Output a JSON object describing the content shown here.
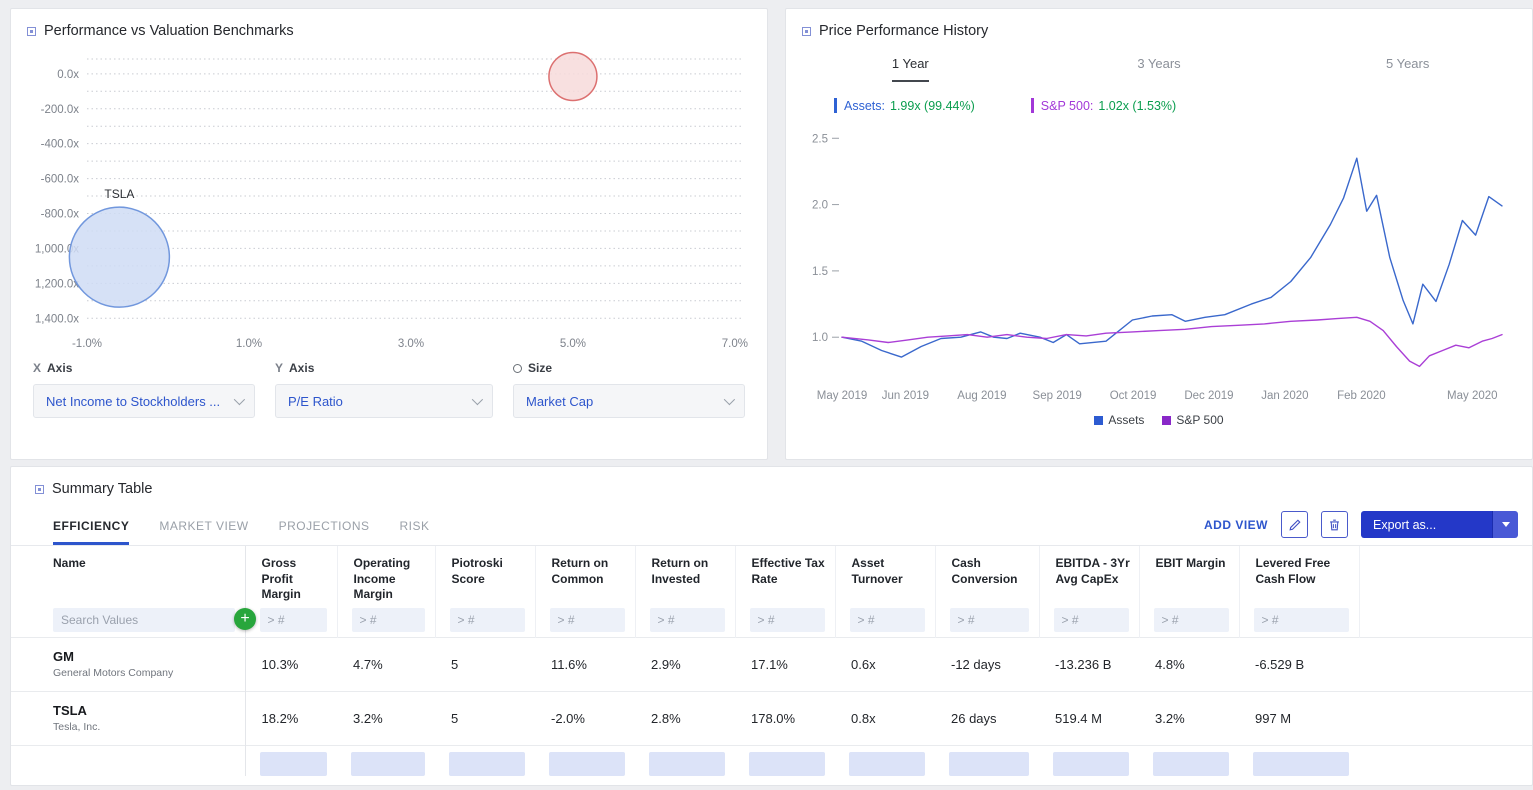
{
  "panels": {
    "scatter": {
      "title": "Performance vs Valuation Benchmarks",
      "controls": [
        {
          "prefix": "X",
          "label": "Axis",
          "value": "Net Income to Stockholders ..."
        },
        {
          "prefix": "Y",
          "label": "Axis",
          "value": "P/E Ratio"
        },
        {
          "prefix": "",
          "label": "Size",
          "value": "Market Cap"
        }
      ]
    },
    "price": {
      "title": "Price Performance History",
      "tabs": [
        "1 Year",
        "3 Years",
        "5 Years"
      ],
      "active_tab": "1 Year",
      "legend": [
        {
          "name": "Assets:",
          "value": "1.99x (99.44%)",
          "color": "#2f62d4"
        },
        {
          "name": "S&P 500:",
          "value": "1.02x (1.53%)",
          "color": "#a238d8"
        }
      ],
      "series_legend": [
        {
          "label": "Assets",
          "color": "#2d5bd1"
        },
        {
          "label": "S&P 500",
          "color": "#8928c8"
        }
      ]
    }
  },
  "summary": {
    "title": "Summary Table",
    "tabs": [
      "EFFICIENCY",
      "MARKET VIEW",
      "PROJECTIONS",
      "RISK"
    ],
    "active_tab": "EFFICIENCY",
    "add_view_label": "ADD VIEW",
    "export_label": "Export as...",
    "search_placeholder": "Search Values",
    "filter_placeholder": "> #",
    "columns": [
      "Name",
      "Gross Profit Margin",
      "Operating Income Margin",
      "Piotroski Score",
      "Return on Common",
      "Return on Invested",
      "Effective Tax Rate",
      "Asset Turnover",
      "Cash Conversion",
      "EBITDA - 3Yr Avg CapEx",
      "EBIT Margin",
      "Levered Free Cash Flow"
    ],
    "rows": [
      {
        "ticker": "GM",
        "company": "General Motors Company",
        "values": [
          "10.3%",
          "4.7%",
          "5",
          "11.6%",
          "2.9%",
          "17.1%",
          "0.6x",
          "-12 days",
          "-13.236 B",
          "4.8%",
          "-6.529 B"
        ]
      },
      {
        "ticker": "TSLA",
        "company": "Tesla, Inc.",
        "values": [
          "18.2%",
          "3.2%",
          "5",
          "-2.0%",
          "2.8%",
          "178.0%",
          "0.8x",
          "26 days",
          "519.4 M",
          "3.2%",
          "997 M"
        ]
      }
    ]
  },
  "chart_data": [
    {
      "id": "valuation-scatter",
      "type": "scatter",
      "title": "Performance vs Valuation Benchmarks",
      "xlabel": "Net Income to Stockholders ...",
      "ylabel": "P/E Ratio",
      "size_label": "Market Cap",
      "xlim": [
        -1.0,
        7.1
      ],
      "ylim": [
        -1450,
        85
      ],
      "grid": "horizontal-dotted",
      "grid_step": 100,
      "xticks": [
        {
          "v": -1.0,
          "label": "-1.0%"
        },
        {
          "v": 1.0,
          "label": "1.0%"
        },
        {
          "v": 3.0,
          "label": "3.0%"
        },
        {
          "v": 5.0,
          "label": "5.0%"
        },
        {
          "v": 7.0,
          "label": "7.0%"
        }
      ],
      "yticks": [
        {
          "v": 0,
          "label": "0.0x"
        },
        {
          "v": -200,
          "label": "-200.0x"
        },
        {
          "v": -400,
          "label": "-400.0x"
        },
        {
          "v": -600,
          "label": "-600.0x"
        },
        {
          "v": -800,
          "label": "-800.0x"
        },
        {
          "v": -1000,
          "label": "1,000.0x"
        },
        {
          "v": -1200,
          "label": "1,200.0x"
        },
        {
          "v": -1400,
          "label": "1,400.0x"
        }
      ],
      "points": [
        {
          "label": "TSLA",
          "x": -0.6,
          "y": -1050,
          "r": 50,
          "fill": "#cfdcf4",
          "stroke": "#7197dd"
        },
        {
          "label": "",
          "x": 5.0,
          "y": -15,
          "r": 24,
          "fill": "#f7dada",
          "stroke": "#dc7070"
        }
      ]
    },
    {
      "id": "price-history",
      "type": "line",
      "title": "Price Performance History",
      "ylim": [
        0.7,
        2.6
      ],
      "grid": "off",
      "legend_position": "bottom-center",
      "yticks": [
        {
          "v": 1.0,
          "label": "1.0"
        },
        {
          "v": 1.5,
          "label": "1.5"
        },
        {
          "v": 2.0,
          "label": "2.0"
        },
        {
          "v": 2.5,
          "label": "2.5"
        }
      ],
      "x_labels": [
        {
          "label": "May 2019",
          "pos": 0.0
        },
        {
          "label": "Jun 2019",
          "pos": 0.096
        },
        {
          "label": "Aug 2019",
          "pos": 0.212
        },
        {
          "label": "Sep 2019",
          "pos": 0.326
        },
        {
          "label": "Oct 2019",
          "pos": 0.441
        },
        {
          "label": "Dec 2019",
          "pos": 0.556
        },
        {
          "label": "Jan 2020",
          "pos": 0.671
        },
        {
          "label": "Feb 2020",
          "pos": 0.787
        },
        {
          "label": "May 2020",
          "pos": 0.955
        }
      ],
      "series": [
        {
          "name": "Assets",
          "color": "#3a68cc",
          "final_value": "1.99x (99.44%)",
          "points": [
            [
              0,
              1.0
            ],
            [
              0.03,
              0.97
            ],
            [
              0.06,
              0.9
            ],
            [
              0.09,
              0.85
            ],
            [
              0.12,
              0.93
            ],
            [
              0.15,
              0.99
            ],
            [
              0.18,
              1.0
            ],
            [
              0.21,
              1.04
            ],
            [
              0.23,
              1.0
            ],
            [
              0.25,
              0.99
            ],
            [
              0.27,
              1.03
            ],
            [
              0.3,
              1.0
            ],
            [
              0.32,
              0.96
            ],
            [
              0.34,
              1.02
            ],
            [
              0.36,
              0.95
            ],
            [
              0.4,
              0.97
            ],
            [
              0.44,
              1.13
            ],
            [
              0.47,
              1.16
            ],
            [
              0.5,
              1.17
            ],
            [
              0.52,
              1.12
            ],
            [
              0.55,
              1.15
            ],
            [
              0.58,
              1.17
            ],
            [
              0.62,
              1.25
            ],
            [
              0.65,
              1.3
            ],
            [
              0.68,
              1.42
            ],
            [
              0.71,
              1.6
            ],
            [
              0.74,
              1.85
            ],
            [
              0.76,
              2.05
            ],
            [
              0.78,
              2.35
            ],
            [
              0.795,
              1.95
            ],
            [
              0.81,
              2.07
            ],
            [
              0.83,
              1.6
            ],
            [
              0.85,
              1.28
            ],
            [
              0.865,
              1.1
            ],
            [
              0.88,
              1.4
            ],
            [
              0.9,
              1.27
            ],
            [
              0.92,
              1.55
            ],
            [
              0.94,
              1.88
            ],
            [
              0.96,
              1.77
            ],
            [
              0.98,
              2.06
            ],
            [
              1.0,
              1.99
            ]
          ]
        },
        {
          "name": "S&P 500",
          "color": "#aa3fd6",
          "final_value": "1.02x (1.53%)",
          "points": [
            [
              0,
              1.0
            ],
            [
              0.04,
              0.98
            ],
            [
              0.07,
              0.96
            ],
            [
              0.1,
              0.98
            ],
            [
              0.13,
              1.0
            ],
            [
              0.16,
              1.01
            ],
            [
              0.19,
              1.02
            ],
            [
              0.22,
              1.0
            ],
            [
              0.25,
              1.02
            ],
            [
              0.28,
              1.0
            ],
            [
              0.31,
              0.99
            ],
            [
              0.34,
              1.02
            ],
            [
              0.37,
              1.01
            ],
            [
              0.4,
              1.03
            ],
            [
              0.44,
              1.04
            ],
            [
              0.48,
              1.05
            ],
            [
              0.52,
              1.06
            ],
            [
              0.56,
              1.08
            ],
            [
              0.6,
              1.09
            ],
            [
              0.64,
              1.1
            ],
            [
              0.68,
              1.12
            ],
            [
              0.72,
              1.13
            ],
            [
              0.75,
              1.14
            ],
            [
              0.78,
              1.15
            ],
            [
              0.8,
              1.12
            ],
            [
              0.82,
              1.05
            ],
            [
              0.84,
              0.93
            ],
            [
              0.86,
              0.82
            ],
            [
              0.875,
              0.78
            ],
            [
              0.89,
              0.86
            ],
            [
              0.91,
              0.9
            ],
            [
              0.93,
              0.94
            ],
            [
              0.95,
              0.92
            ],
            [
              0.97,
              0.97
            ],
            [
              0.985,
              0.99
            ],
            [
              1.0,
              1.02
            ]
          ]
        }
      ]
    }
  ]
}
